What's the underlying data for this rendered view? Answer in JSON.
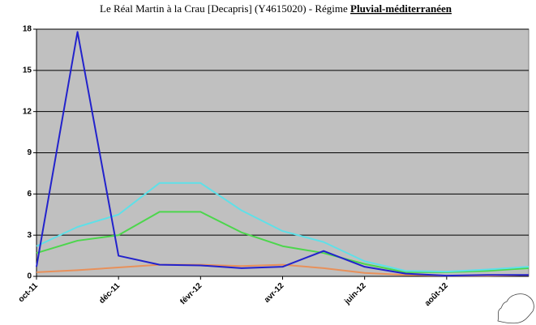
{
  "chart_data": {
    "type": "line",
    "title": "Le Réal Martin à la Crau [Decapris] (Y4615020) - Régime",
    "title_regime": "Pluvial-méditerranéen",
    "categories": [
      "oct-11",
      null,
      "déc-11",
      null,
      "févr-12",
      null,
      "avr-12",
      null,
      "juin-12",
      null,
      "août-12",
      null,
      null
    ],
    "series": [
      {
        "color": "#e8905a",
        "values": [
          0.3,
          0.45,
          0.65,
          0.85,
          0.85,
          0.75,
          0.85,
          0.6,
          0.25,
          0.1,
          0.05,
          0.05,
          0.1
        ]
      },
      {
        "color": "#4cd64c",
        "values": [
          1.7,
          2.6,
          3.0,
          4.7,
          4.7,
          3.2,
          2.2,
          1.7,
          0.9,
          0.3,
          0.3,
          0.4,
          0.6
        ]
      },
      {
        "color": "#5ee0e8",
        "values": [
          2.2,
          3.6,
          4.5,
          6.8,
          6.8,
          4.8,
          3.3,
          2.5,
          1.1,
          0.4,
          0.35,
          0.5,
          0.7
        ]
      },
      {
        "color": "#2222cc",
        "values": [
          0.7,
          17.8,
          1.5,
          0.85,
          0.8,
          0.6,
          0.7,
          1.85,
          0.7,
          0.2,
          0.05,
          0.1,
          0.1
        ]
      }
    ],
    "ylim": [
      0,
      18
    ],
    "yticks": [
      0,
      3,
      6,
      9,
      12,
      15,
      18
    ],
    "grid": true
  }
}
